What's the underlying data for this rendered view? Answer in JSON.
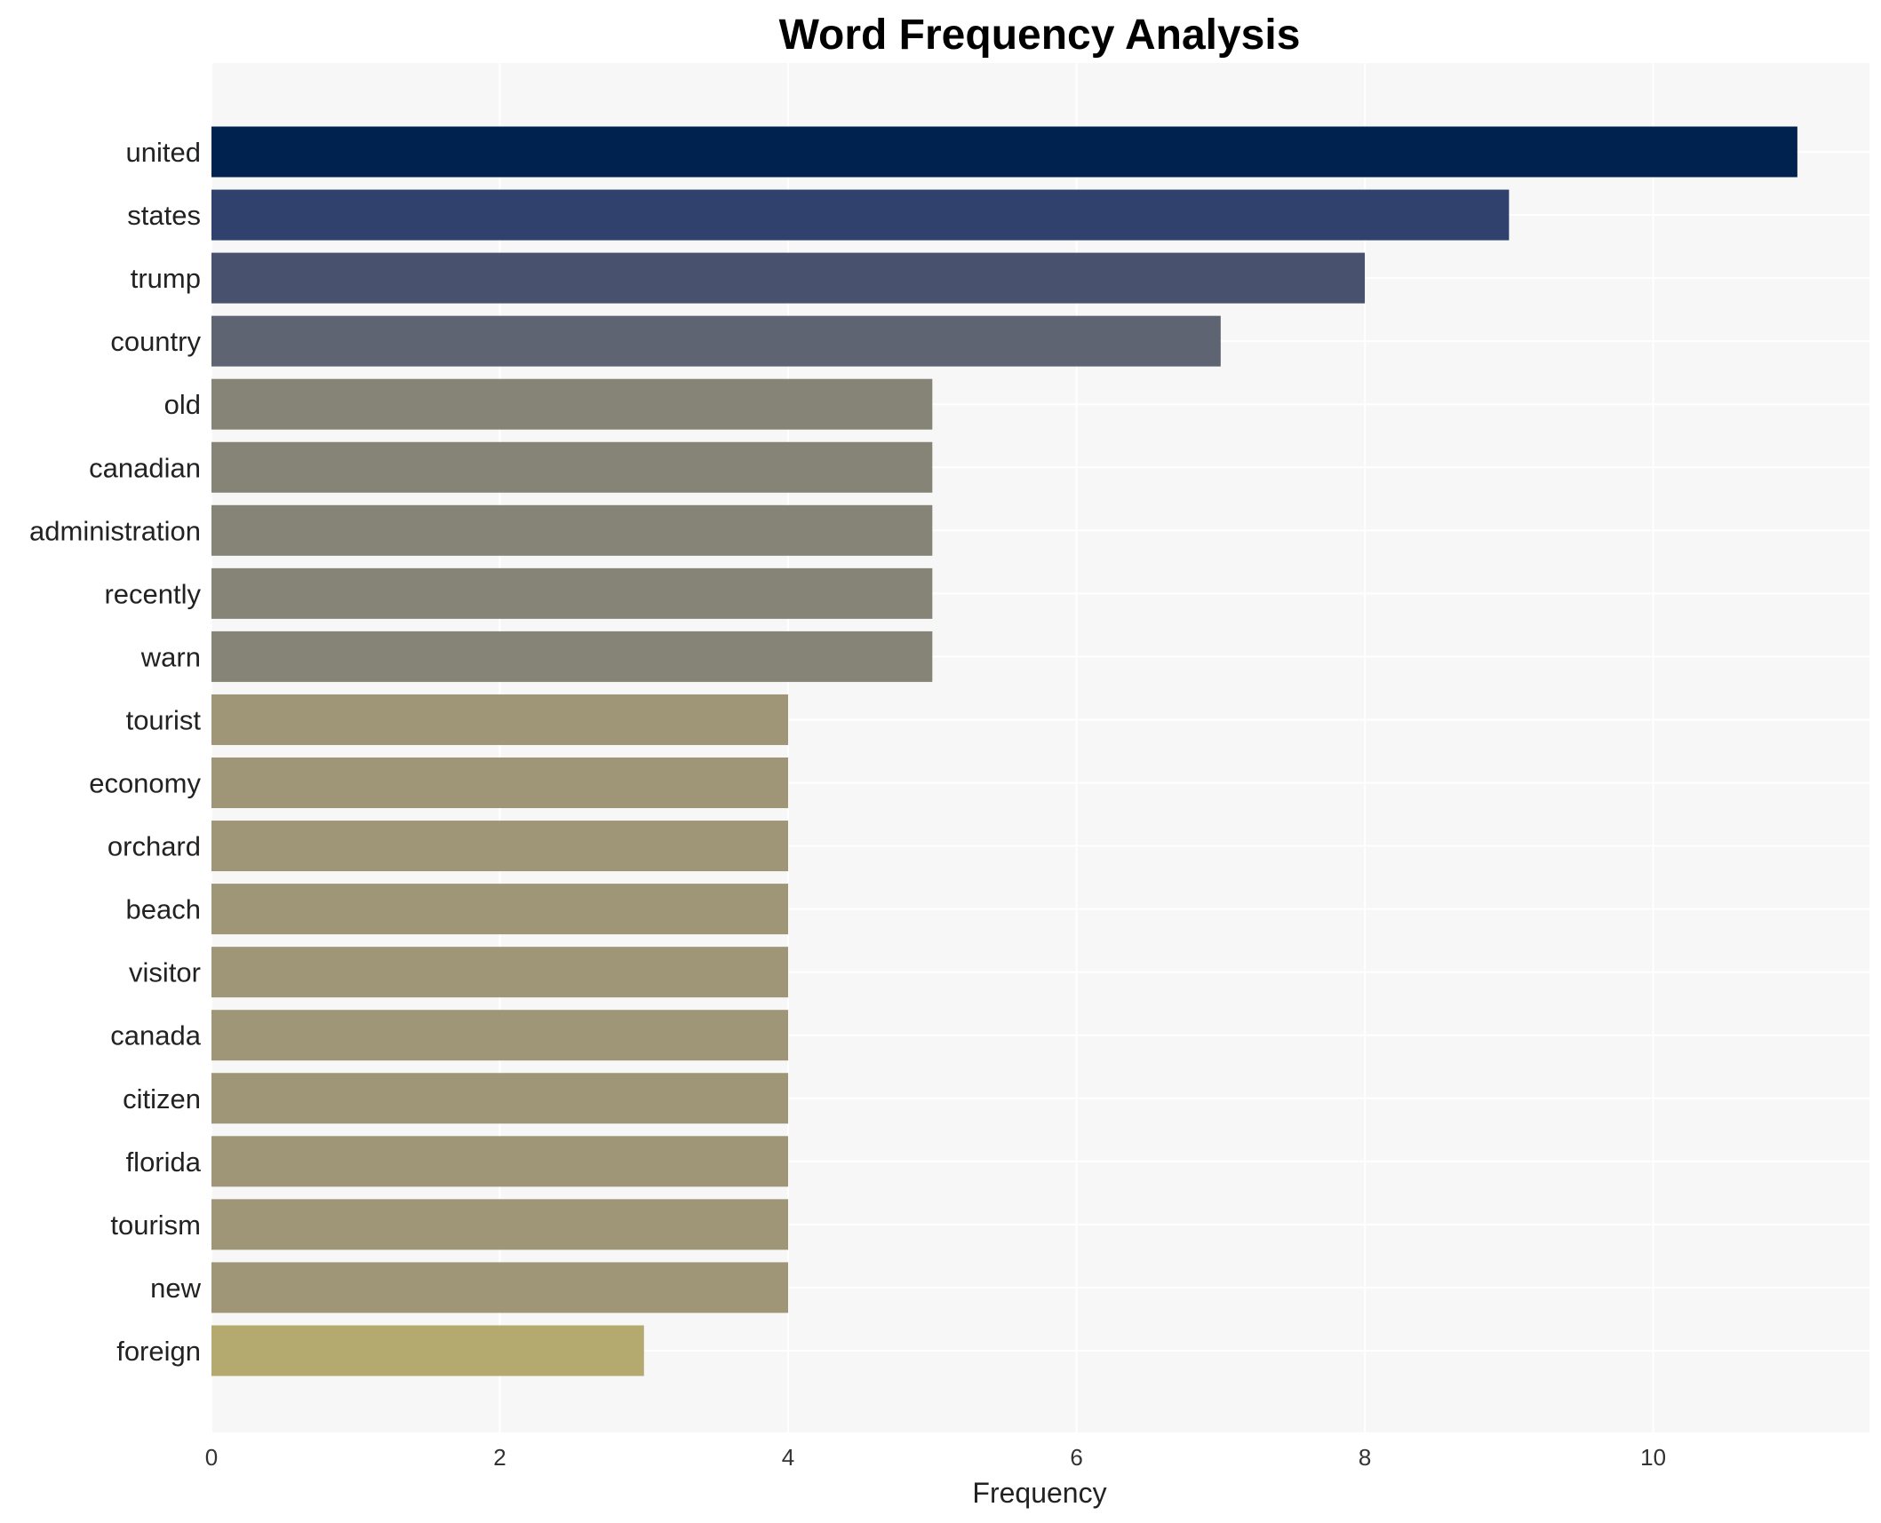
{
  "chart_data": {
    "type": "bar",
    "orientation": "horizontal",
    "title": "Word Frequency Analysis",
    "xlabel": "Frequency",
    "ylabel": "",
    "xlim": [
      0,
      11.5
    ],
    "xticks": [
      0,
      2,
      4,
      6,
      8,
      10
    ],
    "grid": true,
    "legend": "none",
    "categories": [
      "united",
      "states",
      "trump",
      "country",
      "old",
      "canadian",
      "administration",
      "recently",
      "warn",
      "tourist",
      "economy",
      "orchard",
      "beach",
      "visitor",
      "canada",
      "citizen",
      "florida",
      "tourism",
      "new",
      "foreign"
    ],
    "values": [
      11,
      9,
      8,
      7,
      5,
      5,
      5,
      5,
      5,
      4,
      4,
      4,
      4,
      4,
      4,
      4,
      4,
      4,
      4,
      3
    ],
    "colors": [
      "#00224e",
      "#2f416c",
      "#48526e",
      "#5e6471",
      "#868476",
      "#868476",
      "#868476",
      "#868476",
      "#868476",
      "#9e9677",
      "#9e9677",
      "#9e9677",
      "#9e9677",
      "#9e9677",
      "#9e9677",
      "#9e9677",
      "#9e9677",
      "#9e9677",
      "#9e9677",
      "#b4a96e"
    ],
    "background": "#f7f7f7"
  }
}
